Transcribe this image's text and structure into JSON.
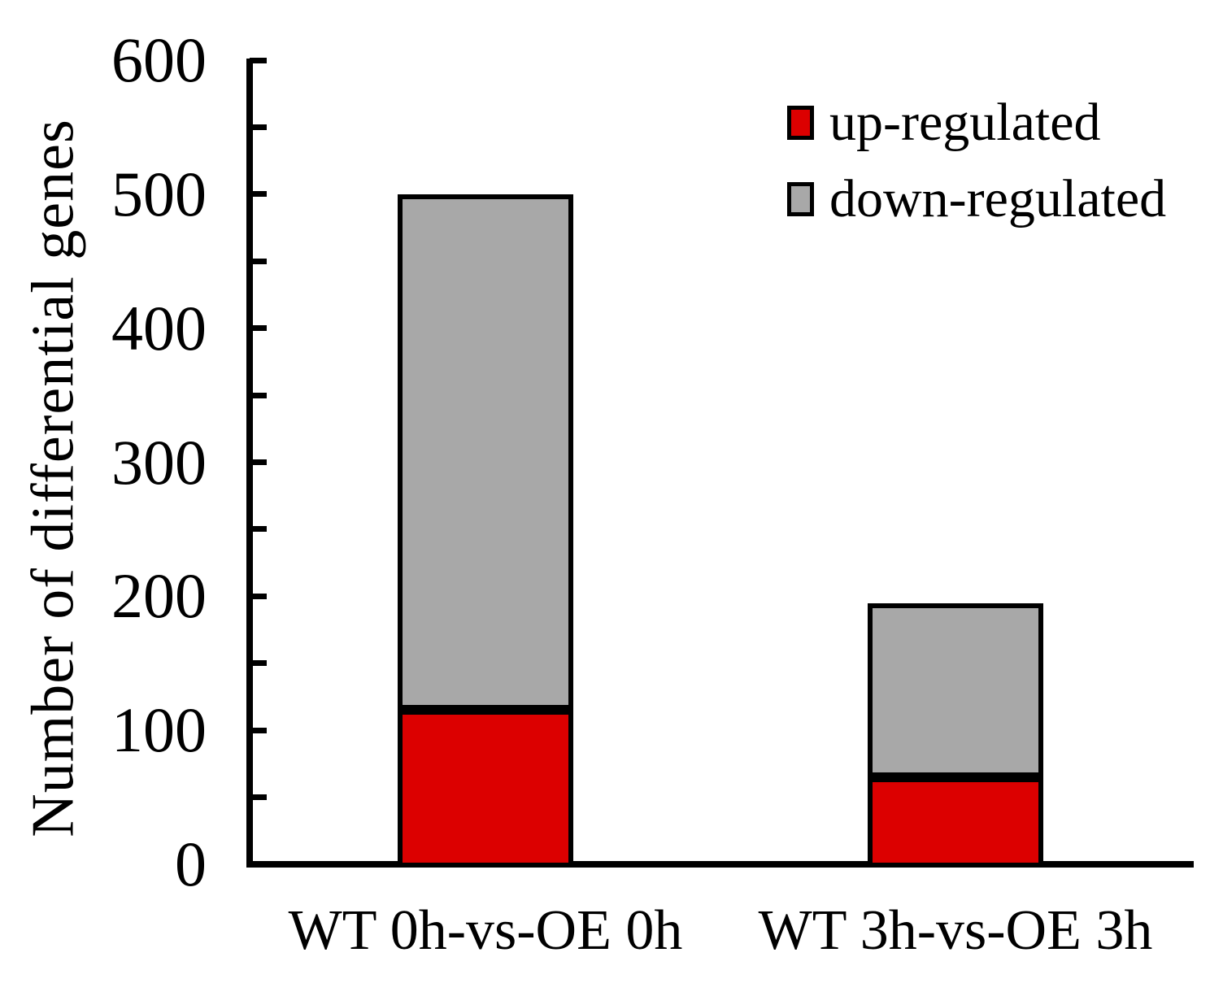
{
  "chart_data": {
    "type": "bar",
    "stacked": true,
    "title": "",
    "categories": [
      "WT 0h-vs-OE 0h",
      "WT 3h-vs-OE 3h"
    ],
    "series": [
      {
        "name": "up-regulated",
        "color": "#DC0000",
        "values": [
          115,
          65
        ]
      },
      {
        "name": "down-regulated",
        "color": "#A8A8A8",
        "values": [
          385,
          130
        ]
      }
    ],
    "totals": [
      500,
      195
    ],
    "xlabel": "",
    "ylabel": "Number of differential genes",
    "ylim": [
      0,
      600
    ],
    "y_major_tick": 100,
    "y_minor_tick": 50,
    "y_tick_labels": [
      "0",
      "100",
      "200",
      "300",
      "400",
      "500",
      "600"
    ],
    "grid": false,
    "legend_position": "top-right",
    "bar_border_color": "#000000",
    "axis_color": "#000000",
    "background": "#FFFFFF"
  }
}
